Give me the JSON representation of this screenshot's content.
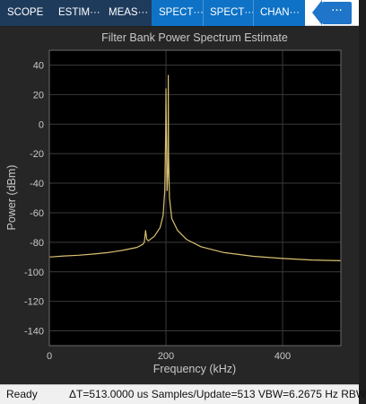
{
  "toolstrip": {
    "tabs": [
      {
        "label": "SCOPE",
        "active": false
      },
      {
        "label": "ESTIM···",
        "active": false
      },
      {
        "label": "MEAS···",
        "active": false
      },
      {
        "label": "SPECT···",
        "active": true
      },
      {
        "label": "SPECT···",
        "active": true
      },
      {
        "label": "CHAN···",
        "active": true
      }
    ],
    "overflow_label": "···"
  },
  "chart_data": {
    "type": "line",
    "title": "Filter Bank Power Spectrum Estimate",
    "xlabel": "Frequency (kHz)",
    "ylabel": "Power (dBm)",
    "xlim": [
      0,
      500
    ],
    "ylim": [
      -150,
      50
    ],
    "xticks": [
      0,
      200,
      400
    ],
    "yticks": [
      40,
      20,
      0,
      -20,
      -40,
      -60,
      -80,
      -100,
      -120,
      -140
    ],
    "grid": true,
    "series": [
      {
        "color": "#d8c070",
        "x": [
          0,
          25,
          50,
          75,
          100,
          125,
          150,
          160,
          163,
          165,
          167,
          170,
          180,
          190,
          195,
          198,
          199.5,
          200,
          200.5,
          202,
          203.5,
          204,
          204.5,
          206,
          210,
          220,
          235,
          260,
          300,
          350,
          400,
          450,
          500
        ],
        "y": [
          -90,
          -89.3,
          -88.8,
          -88,
          -87,
          -85.5,
          -83.5,
          -81.5,
          -80,
          -72,
          -78,
          -79,
          -76,
          -70,
          -62,
          -45,
          -5,
          24,
          5,
          -45,
          -30,
          33,
          -20,
          -50,
          -64,
          -72,
          -78,
          -83,
          -87,
          -89.5,
          -91,
          -92,
          -92.5
        ]
      }
    ]
  },
  "status": {
    "ready": "Ready",
    "info": "ΔT=513.0000 us  Samples/Update=513  VBW=6.2675 Hz  RBW"
  }
}
